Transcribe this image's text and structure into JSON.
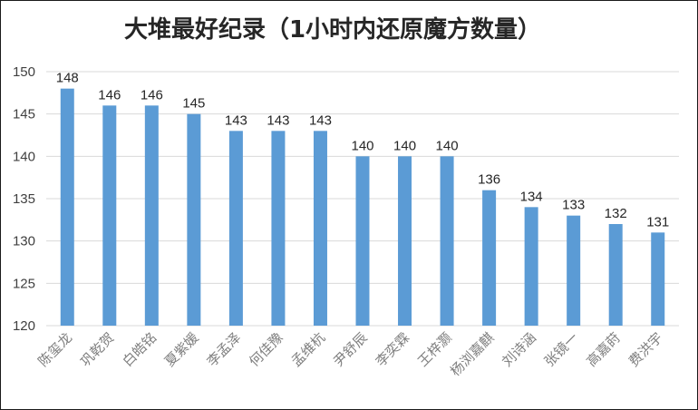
{
  "chart_data": {
    "type": "bar",
    "title": "大堆最好纪录（1小时内还原魔方数量）",
    "xlabel": "",
    "ylabel": "",
    "ylim": [
      120,
      150
    ],
    "yticks": [
      120,
      125,
      130,
      135,
      140,
      145,
      150
    ],
    "grid": true,
    "legend": "none",
    "bar_color": "#5b9bd5",
    "categories": [
      "陈玺龙",
      "巩乾贺",
      "白皓铭",
      "夏紫媛",
      "李孟泽",
      "何佳豫",
      "孟维杭",
      "尹舒辰",
      "李奕霖",
      "王梓灏",
      "杨浏嘉麒",
      "刘诗涵",
      "张镜一",
      "高嘉莳",
      "费洪宇"
    ],
    "values": [
      148,
      146,
      146,
      145,
      143,
      143,
      143,
      140,
      140,
      140,
      136,
      134,
      133,
      132,
      131
    ]
  }
}
